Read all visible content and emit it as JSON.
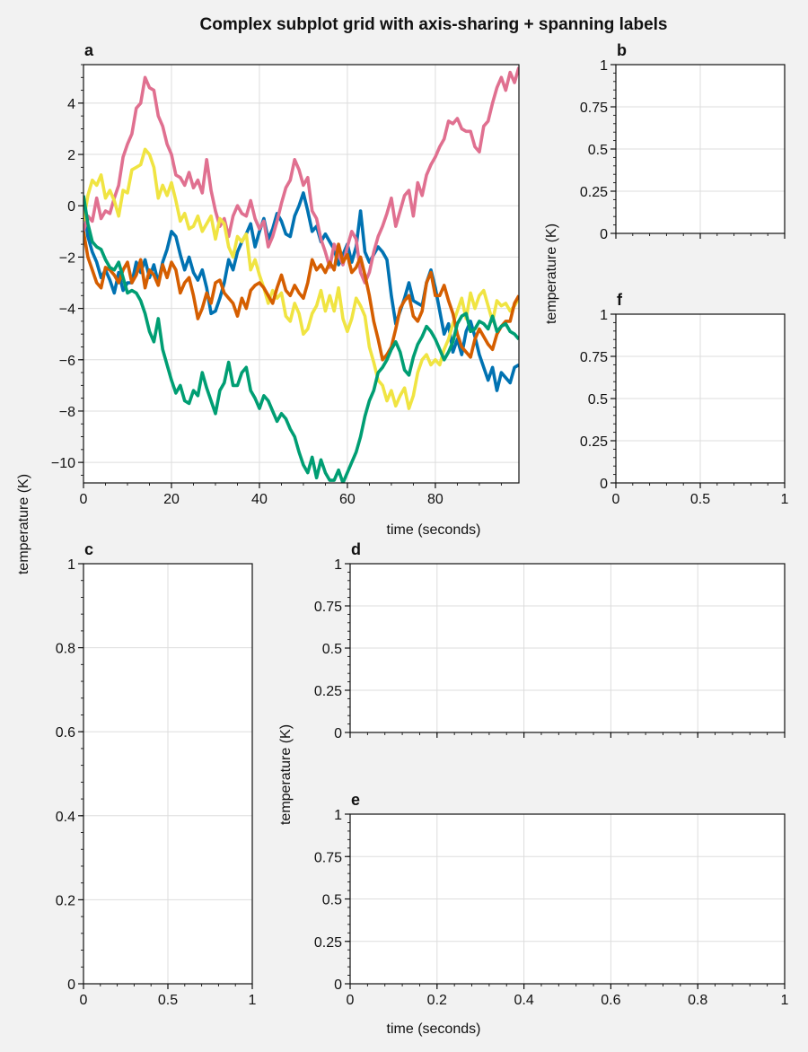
{
  "figure": {
    "title": "Complex subplot grid with axis-sharing + spanning labels"
  },
  "labels": {
    "xlabel_top": "time (seconds)",
    "xlabel_bottom": "time (seconds)",
    "ylabel_left": "temperature (K)",
    "ylabel_right_top": "temperature (K)",
    "ylabel_right_bottom": "temperature (K)"
  },
  "colors": {
    "background": "#f2f2f2",
    "panel": "#ffffff",
    "grid": "#dddddd",
    "axis": "#111111"
  },
  "chart_data": [
    {
      "id": "a",
      "type": "line",
      "panel_label": "a",
      "xlim": [
        0,
        99
      ],
      "ylim": [
        -10.8,
        5.5
      ],
      "xticks": [
        0,
        20,
        40,
        60,
        80
      ],
      "yticks": [
        -10,
        -8,
        -6,
        -4,
        -2,
        0,
        2,
        4
      ],
      "grid": true,
      "x": [
        0,
        1,
        2,
        3,
        4,
        5,
        6,
        7,
        8,
        9,
        10,
        11,
        12,
        13,
        14,
        15,
        16,
        17,
        18,
        19,
        20,
        21,
        22,
        23,
        24,
        25,
        26,
        27,
        28,
        29,
        30,
        31,
        32,
        33,
        34,
        35,
        36,
        37,
        38,
        39,
        40,
        41,
        42,
        43,
        44,
        45,
        46,
        47,
        48,
        49,
        50,
        51,
        52,
        53,
        54,
        55,
        56,
        57,
        58,
        59,
        60,
        61,
        62,
        63,
        64,
        65,
        66,
        67,
        68,
        69,
        70,
        71,
        72,
        73,
        74,
        75,
        76,
        77,
        78,
        79,
        80,
        81,
        82,
        83,
        84,
        85,
        86,
        87,
        88,
        89,
        90,
        91,
        92,
        93,
        94,
        95,
        96,
        97,
        98,
        99
      ],
      "series": [
        {
          "color": "#0072b2",
          "values": [
            0.1,
            -1.2,
            -1.8,
            -2.2,
            -2.8,
            -2.5,
            -2.9,
            -3.4,
            -2.6,
            -3.3,
            -3.0,
            -3.0,
            -2.2,
            -2.6,
            -2.1,
            -2.8,
            -2.3,
            -3.0,
            -2.2,
            -1.7,
            -1.0,
            -1.2,
            -1.9,
            -2.5,
            -2.0,
            -2.6,
            -2.9,
            -2.5,
            -3.2,
            -4.2,
            -4.1,
            -3.6,
            -3.0,
            -2.1,
            -2.5,
            -1.8,
            -1.4,
            -1.1,
            -0.7,
            -1.6,
            -1.0,
            -0.5,
            -1.3,
            -0.9,
            -0.3,
            -0.6,
            -1.1,
            -1.2,
            -0.4,
            0.0,
            0.5,
            -0.2,
            -1.0,
            -0.8,
            -1.4,
            -1.1,
            -1.4,
            -1.7,
            -2.3,
            -1.9,
            -1.5,
            -2.2,
            -1.6,
            -0.2,
            -1.8,
            -2.2,
            -1.9,
            -1.6,
            -1.8,
            -2.1,
            -3.5,
            -4.6,
            -4.1,
            -3.6,
            -3.0,
            -3.7,
            -3.8,
            -3.9,
            -3.0,
            -2.5,
            -3.2,
            -4.1,
            -5.0,
            -4.6,
            -5.7,
            -5.2,
            -5.8,
            -4.9,
            -4.5,
            -5.1,
            -5.8,
            -6.3,
            -6.8,
            -6.3,
            -7.2,
            -6.5,
            -6.7,
            -6.9,
            -6.3,
            -6.2
          ]
        },
        {
          "color": "#e07090",
          "values": [
            -1.0,
            -0.4,
            -0.6,
            0.3,
            -0.5,
            -0.2,
            -0.3,
            0.3,
            0.8,
            1.9,
            2.4,
            2.8,
            3.8,
            4.0,
            5.0,
            4.6,
            4.5,
            3.5,
            3.1,
            2.4,
            2.0,
            1.2,
            1.1,
            0.8,
            1.3,
            0.7,
            1.0,
            0.5,
            1.8,
            0.6,
            -0.2,
            -0.8,
            -0.5,
            -1.2,
            -0.4,
            0.0,
            -0.3,
            -0.4,
            0.2,
            -0.5,
            -0.9,
            -0.6,
            -1.6,
            -1.2,
            -0.6,
            0.1,
            0.7,
            1.0,
            1.8,
            1.4,
            0.8,
            1.1,
            -0.2,
            -0.5,
            -1.3,
            -1.8,
            -2.4,
            -1.5,
            -1.9,
            -2.3,
            -1.6,
            -1.0,
            -1.3,
            -2.6,
            -3.0,
            -2.6,
            -1.8,
            -1.2,
            -0.8,
            -0.3,
            0.3,
            -0.8,
            -0.2,
            0.4,
            0.6,
            -0.4,
            0.9,
            0.4,
            1.2,
            1.6,
            1.9,
            2.3,
            2.6,
            3.3,
            3.2,
            3.4,
            3.0,
            2.9,
            2.9,
            2.3,
            2.1,
            3.1,
            3.3,
            4.0,
            4.6,
            5.0,
            4.5,
            5.2,
            4.8,
            5.4
          ]
        },
        {
          "color": "#f0e442",
          "values": [
            -0.6,
            0.4,
            1.0,
            0.8,
            1.2,
            0.3,
            0.6,
            0.2,
            -0.4,
            0.6,
            0.5,
            1.4,
            1.5,
            1.6,
            2.2,
            2.0,
            1.5,
            0.3,
            0.8,
            0.4,
            0.9,
            0.2,
            -0.6,
            -0.3,
            -0.9,
            -0.8,
            -0.4,
            -1.0,
            -0.7,
            -0.4,
            -1.3,
            -0.5,
            -0.7,
            -1.6,
            -2.0,
            -1.2,
            -1.4,
            -1.1,
            -2.5,
            -2.1,
            -2.7,
            -3.2,
            -3.8,
            -3.3,
            -3.6,
            -3.4,
            -4.3,
            -4.5,
            -3.8,
            -4.2,
            -5.0,
            -4.8,
            -4.2,
            -3.9,
            -3.3,
            -4.1,
            -3.5,
            -4.1,
            -3.2,
            -4.4,
            -4.9,
            -4.4,
            -3.6,
            -3.9,
            -4.3,
            -5.5,
            -6.1,
            -6.8,
            -7.0,
            -7.6,
            -7.2,
            -7.8,
            -7.4,
            -7.1,
            -7.9,
            -7.4,
            -6.5,
            -6.0,
            -5.8,
            -6.2,
            -6.0,
            -6.2,
            -5.6,
            -5.2,
            -4.6,
            -4.1,
            -3.6,
            -4.4,
            -3.4,
            -4.0,
            -3.5,
            -3.3,
            -3.9,
            -4.5,
            -3.7,
            -3.9,
            -3.8,
            -4.1,
            -3.9,
            -3.6
          ]
        },
        {
          "color": "#d55e00",
          "values": [
            -1.0,
            -2.0,
            -2.5,
            -3.0,
            -3.2,
            -2.4,
            -2.5,
            -2.7,
            -3.0,
            -2.5,
            -2.2,
            -3.0,
            -2.7,
            -2.1,
            -3.2,
            -2.5,
            -2.7,
            -3.1,
            -2.3,
            -2.8,
            -2.2,
            -2.5,
            -3.4,
            -3.0,
            -2.8,
            -3.5,
            -4.4,
            -4.0,
            -3.4,
            -3.8,
            -3.0,
            -2.9,
            -3.4,
            -3.6,
            -3.8,
            -4.3,
            -3.6,
            -4.0,
            -3.3,
            -3.1,
            -3.0,
            -3.2,
            -3.5,
            -3.8,
            -3.2,
            -2.7,
            -3.3,
            -3.5,
            -3.1,
            -3.4,
            -3.6,
            -3.0,
            -2.1,
            -2.5,
            -2.3,
            -2.6,
            -2.2,
            -2.5,
            -1.5,
            -2.2,
            -1.9,
            -2.6,
            -2.4,
            -2.0,
            -2.7,
            -3.5,
            -4.5,
            -5.2,
            -6.0,
            -5.8,
            -5.5,
            -4.8,
            -4.0,
            -3.7,
            -3.5,
            -4.3,
            -4.5,
            -4.1,
            -3.0,
            -2.6,
            -3.5,
            -3.5,
            -3.1,
            -3.7,
            -4.2,
            -5.0,
            -5.5,
            -5.7,
            -5.9,
            -5.2,
            -4.8,
            -5.1,
            -5.4,
            -5.6,
            -5.0,
            -4.7,
            -4.5,
            -4.5,
            -3.8,
            -3.5
          ]
        },
        {
          "color": "#009e73",
          "values": [
            0.4,
            -0.7,
            -1.4,
            -1.6,
            -1.7,
            -2.1,
            -2.4,
            -2.5,
            -2.2,
            -2.8,
            -3.4,
            -3.3,
            -3.4,
            -3.7,
            -4.2,
            -4.9,
            -5.3,
            -4.4,
            -5.6,
            -6.2,
            -6.8,
            -7.3,
            -7.0,
            -7.6,
            -7.7,
            -7.2,
            -7.4,
            -6.5,
            -7.1,
            -7.6,
            -8.1,
            -7.2,
            -6.9,
            -6.1,
            -7.0,
            -7.0,
            -6.5,
            -6.3,
            -7.2,
            -7.5,
            -7.9,
            -7.4,
            -7.6,
            -8.0,
            -8.4,
            -8.1,
            -8.3,
            -8.7,
            -9.0,
            -9.6,
            -10.1,
            -10.4,
            -9.8,
            -10.6,
            -9.9,
            -10.4,
            -10.7,
            -10.7,
            -10.3,
            -10.8,
            -10.4,
            -10.0,
            -9.6,
            -9.0,
            -8.2,
            -7.6,
            -7.2,
            -6.5,
            -6.3,
            -6.0,
            -5.6,
            -5.3,
            -5.7,
            -6.4,
            -6.6,
            -5.9,
            -5.4,
            -5.1,
            -4.7,
            -4.9,
            -5.2,
            -5.6,
            -6.0,
            -5.7,
            -5.3,
            -4.6,
            -4.3,
            -4.2,
            -4.9,
            -4.8,
            -4.5,
            -4.6,
            -4.8,
            -4.3,
            -4.9,
            -4.7,
            -4.6,
            -4.9,
            -5.0,
            -5.2
          ]
        }
      ]
    },
    {
      "id": "b",
      "type": "line",
      "panel_label": "b",
      "xlim": [
        0,
        1
      ],
      "ylim": [
        0,
        1
      ],
      "yticks": [
        0,
        0.25,
        0.5,
        0.75,
        1
      ],
      "ytick_labels": [
        "0",
        "0.25",
        "0.5",
        "0.75",
        "1"
      ],
      "xticks": [
        0,
        0.5,
        1
      ],
      "grid": true,
      "series": []
    },
    {
      "id": "f",
      "type": "line",
      "panel_label": "f",
      "xlim": [
        0,
        1
      ],
      "ylim": [
        0,
        1
      ],
      "yticks": [
        0,
        0.25,
        0.5,
        0.75,
        1
      ],
      "ytick_labels": [
        "0",
        "0.25",
        "0.5",
        "0.75",
        "1"
      ],
      "xticks": [
        0,
        0.5,
        1
      ],
      "xtick_labels": [
        "0",
        "0.5",
        "1"
      ],
      "grid": true,
      "series": []
    },
    {
      "id": "c",
      "type": "line",
      "panel_label": "c",
      "xlim": [
        0,
        1
      ],
      "ylim": [
        0,
        1
      ],
      "yticks": [
        0,
        0.2,
        0.4,
        0.6,
        0.8,
        1
      ],
      "ytick_labels": [
        "0",
        "0.2",
        "0.4",
        "0.6",
        "0.8",
        "1"
      ],
      "xticks": [
        0,
        0.5,
        1
      ],
      "xtick_labels": [
        "0",
        "0.5",
        "1"
      ],
      "grid": true,
      "series": []
    },
    {
      "id": "d",
      "type": "line",
      "panel_label": "d",
      "xlim": [
        0,
        1
      ],
      "ylim": [
        0,
        1
      ],
      "yticks": [
        0,
        0.25,
        0.5,
        0.75,
        1
      ],
      "ytick_labels": [
        "0",
        "0.25",
        "0.5",
        "0.75",
        "1"
      ],
      "xticks": [
        0,
        0.2,
        0.4,
        0.6,
        0.8,
        1
      ],
      "grid": true,
      "series": []
    },
    {
      "id": "e",
      "type": "line",
      "panel_label": "e",
      "xlim": [
        0,
        1
      ],
      "ylim": [
        0,
        1
      ],
      "yticks": [
        0,
        0.25,
        0.5,
        0.75,
        1
      ],
      "ytick_labels": [
        "0",
        "0.25",
        "0.5",
        "0.75",
        "1"
      ],
      "xticks": [
        0,
        0.2,
        0.4,
        0.6,
        0.8,
        1
      ],
      "xtick_labels": [
        "0",
        "0.2",
        "0.4",
        "0.6",
        "0.8",
        "1"
      ],
      "grid": true,
      "series": []
    }
  ]
}
